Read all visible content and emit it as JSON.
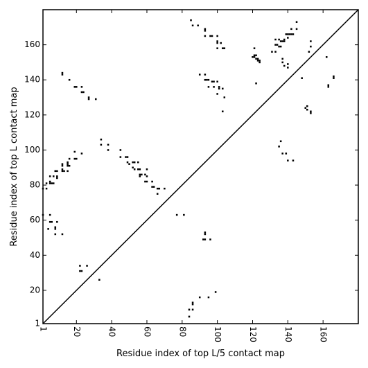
{
  "chart_data": {
    "type": "scatter",
    "title": "",
    "xlabel": "Residue index of top L/5 contact map",
    "ylabel": "Residue index of top L contact map",
    "xlim": [
      1,
      180
    ],
    "ylim": [
      1,
      180
    ],
    "xticks": [
      1,
      20,
      40,
      60,
      80,
      100,
      120,
      140,
      160
    ],
    "yticks": [
      1,
      20,
      40,
      60,
      80,
      100,
      120,
      140,
      160
    ],
    "grid": false,
    "legend": "none",
    "diagonal": true,
    "marker_color": "#000000",
    "lower_triangle_points": [
      [
        12,
        52
      ],
      [
        8,
        52
      ],
      [
        8,
        55
      ],
      [
        8,
        56
      ],
      [
        4,
        55
      ],
      [
        9,
        59
      ],
      [
        5,
        59
      ],
      [
        6,
        59
      ],
      [
        5,
        63
      ],
      [
        1,
        63
      ],
      [
        3,
        78
      ],
      [
        1,
        78
      ],
      [
        3,
        81
      ],
      [
        5,
        81
      ],
      [
        6,
        81
      ],
      [
        7,
        81
      ],
      [
        5,
        82
      ],
      [
        5,
        85
      ],
      [
        7,
        85
      ],
      [
        9,
        85
      ],
      [
        9,
        84
      ],
      [
        8,
        88
      ],
      [
        9,
        88
      ],
      [
        12,
        88
      ],
      [
        13,
        88
      ],
      [
        12,
        89
      ],
      [
        12,
        91
      ],
      [
        12,
        92
      ],
      [
        15,
        91
      ],
      [
        16,
        91
      ],
      [
        15,
        92
      ],
      [
        15,
        93
      ],
      [
        16,
        95
      ],
      [
        15,
        88
      ],
      [
        19,
        95
      ],
      [
        20,
        95
      ],
      [
        19,
        99
      ],
      [
        23,
        98
      ],
      [
        34,
        103
      ],
      [
        34,
        106
      ],
      [
        38,
        100
      ],
      [
        38,
        103
      ],
      [
        45,
        96
      ],
      [
        45,
        100
      ],
      [
        48,
        96
      ],
      [
        49,
        96
      ],
      [
        49,
        93
      ],
      [
        50,
        92
      ],
      [
        52,
        93
      ],
      [
        53,
        93
      ],
      [
        52,
        90
      ],
      [
        53,
        89
      ],
      [
        55,
        89
      ],
      [
        56,
        89
      ],
      [
        55,
        93
      ],
      [
        56,
        86
      ],
      [
        56,
        85
      ],
      [
        57,
        86
      ],
      [
        59,
        86
      ],
      [
        60,
        85
      ],
      [
        59,
        82
      ],
      [
        60,
        82
      ],
      [
        60,
        89
      ],
      [
        63,
        82
      ],
      [
        63,
        79
      ],
      [
        64,
        79
      ],
      [
        66,
        78
      ],
      [
        67,
        78
      ],
      [
        66,
        75
      ],
      [
        70,
        78
      ],
      [
        77,
        63
      ],
      [
        81,
        63
      ],
      [
        84,
        5
      ],
      [
        84,
        9
      ],
      [
        86,
        9
      ],
      [
        86,
        12
      ],
      [
        86,
        13
      ],
      [
        90,
        16
      ],
      [
        92,
        49
      ],
      [
        93,
        49
      ],
      [
        93,
        52
      ],
      [
        93,
        53
      ],
      [
        95,
        16
      ],
      [
        96,
        49
      ],
      [
        99,
        19
      ],
      [
        33,
        26
      ],
      [
        22,
        31
      ],
      [
        23,
        31
      ],
      [
        22,
        34
      ],
      [
        26,
        34
      ]
    ],
    "upper_triangle_points": [
      [
        12,
        143
      ],
      [
        12,
        144
      ],
      [
        16,
        140
      ],
      [
        19,
        136
      ],
      [
        20,
        136
      ],
      [
        23,
        136
      ],
      [
        23,
        133
      ],
      [
        24,
        133
      ],
      [
        27,
        129
      ],
      [
        27,
        130
      ],
      [
        31,
        129
      ],
      [
        85,
        174
      ],
      [
        86,
        171
      ],
      [
        89,
        171
      ],
      [
        90,
        143
      ],
      [
        93,
        168
      ],
      [
        93,
        169
      ],
      [
        93,
        165
      ],
      [
        96,
        165
      ],
      [
        97,
        165
      ],
      [
        100,
        165
      ],
      [
        100,
        162
      ],
      [
        100,
        161
      ],
      [
        100,
        158
      ],
      [
        102,
        161
      ],
      [
        103,
        158
      ],
      [
        104,
        158
      ],
      [
        93,
        143
      ],
      [
        93,
        140
      ],
      [
        94,
        140
      ],
      [
        95,
        140
      ],
      [
        95,
        136
      ],
      [
        97,
        139
      ],
      [
        98,
        139
      ],
      [
        98,
        136
      ],
      [
        100,
        139
      ],
      [
        101,
        136
      ],
      [
        101,
        135
      ],
      [
        100,
        132
      ],
      [
        103,
        135
      ],
      [
        104,
        130
      ],
      [
        103,
        122
      ],
      [
        120,
        153
      ],
      [
        121,
        154
      ],
      [
        121,
        153
      ],
      [
        122,
        154
      ],
      [
        122,
        152
      ],
      [
        123,
        152
      ],
      [
        123,
        151
      ],
      [
        124,
        151
      ],
      [
        124,
        150
      ],
      [
        121,
        158
      ],
      [
        122,
        138
      ],
      [
        131,
        156
      ],
      [
        133,
        156
      ],
      [
        133,
        160
      ],
      [
        134,
        160
      ],
      [
        133,
        163
      ],
      [
        135,
        163
      ],
      [
        135,
        159
      ],
      [
        136,
        159
      ],
      [
        136,
        162
      ],
      [
        137,
        162
      ],
      [
        138,
        162
      ],
      [
        138,
        163
      ],
      [
        139,
        166
      ],
      [
        140,
        166
      ],
      [
        141,
        166
      ],
      [
        142,
        166
      ],
      [
        143,
        166
      ],
      [
        142,
        169
      ],
      [
        145,
        169
      ],
      [
        145,
        173
      ],
      [
        140,
        164
      ],
      [
        137,
        152
      ],
      [
        137,
        150
      ],
      [
        138,
        148
      ],
      [
        140,
        149
      ],
      [
        140,
        147
      ],
      [
        153,
        162
      ],
      [
        153,
        159
      ],
      [
        152,
        156
      ],
      [
        148,
        141
      ],
      [
        150,
        124
      ],
      [
        151,
        123
      ],
      [
        151,
        125
      ],
      [
        153,
        122
      ],
      [
        153,
        121
      ],
      [
        162,
        153
      ],
      [
        163,
        137
      ],
      [
        163,
        136
      ],
      [
        166,
        142
      ],
      [
        166,
        141
      ],
      [
        136,
        105
      ],
      [
        135,
        102
      ],
      [
        137,
        98
      ],
      [
        139,
        98
      ],
      [
        140,
        94
      ],
      [
        143,
        94
      ]
    ]
  }
}
